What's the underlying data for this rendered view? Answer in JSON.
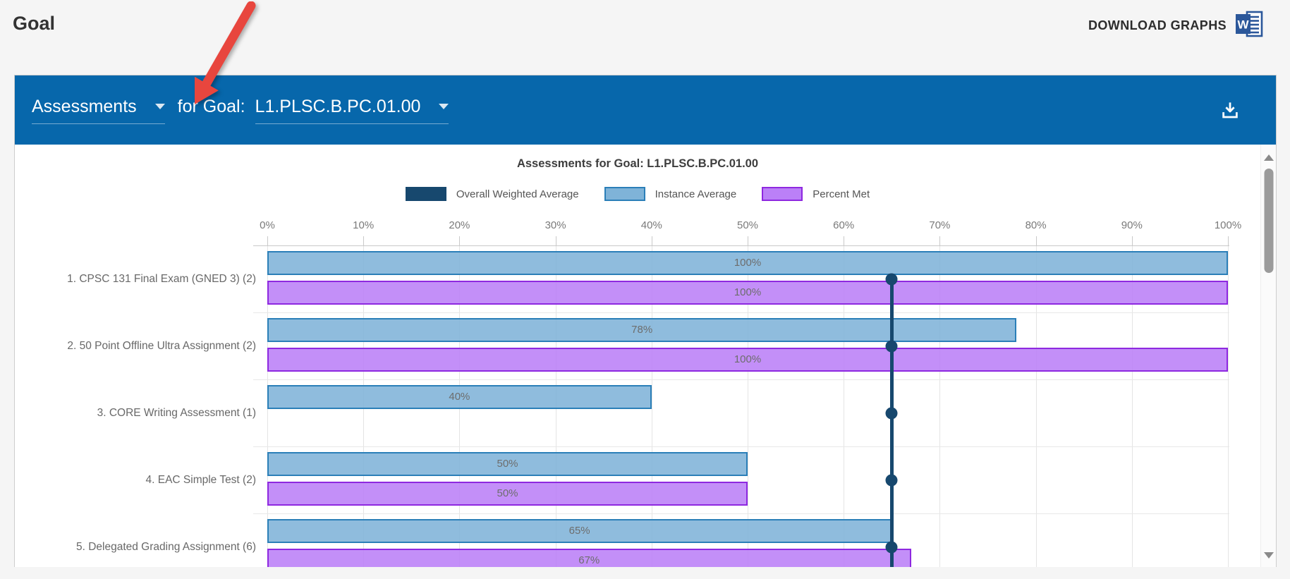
{
  "page": {
    "title": "Goal",
    "download_graphs_label": "DOWNLOAD GRAPHS",
    "background_color": "#f5f5f5"
  },
  "panel": {
    "header": {
      "dataset_selector_label": "Assessments",
      "connector_label": "for Goal:",
      "goal_selector_label": "L1.PLSC.B.PC.01.00",
      "background_color": "#0767AB"
    },
    "scrollbar": {
      "up_icon": "triangle-up-icon",
      "down_icon": "triangle-down-icon"
    }
  },
  "annotation": {
    "shape": "red-arrow",
    "color": "#E8463E",
    "points_at": "assessments-dropdown-caret"
  },
  "chart_data": {
    "type": "bar",
    "orientation": "horizontal",
    "title": "Assessments for Goal: L1.PLSC.B.PC.01.00",
    "legend_position": "top",
    "grid": true,
    "xlim": [
      0,
      100
    ],
    "x_ticks": [
      "0%",
      "10%",
      "20%",
      "30%",
      "40%",
      "50%",
      "60%",
      "70%",
      "80%",
      "90%",
      "100%"
    ],
    "categories": [
      "1. CPSC 131 Final Exam (GNED 3) (2)",
      "2. 50 Point Offline Ultra Assignment (2)",
      "3. CORE Writing Assessment (1)",
      "4. EAC Simple Test (2)",
      "5. Delegated Grading Assignment (6)"
    ],
    "series": [
      {
        "name": "Overall Weighted Average",
        "style": "vline-with-markers",
        "value": 65,
        "color": "#17486E"
      },
      {
        "name": "Instance Average",
        "style": "bar",
        "values": [
          100,
          78,
          40,
          50,
          65
        ],
        "fill": "rgba(127,179,216,0.88)",
        "fill_solid": "#7FB3D8",
        "border": "#2B7FB8"
      },
      {
        "name": "Percent Met",
        "style": "bar",
        "values": [
          100,
          100,
          null,
          50,
          67
        ],
        "fill": "rgba(187,128,247,0.88)",
        "fill_solid": "#BB80F7",
        "border": "#8E28E0"
      }
    ],
    "value_label_format": "{v}%"
  }
}
